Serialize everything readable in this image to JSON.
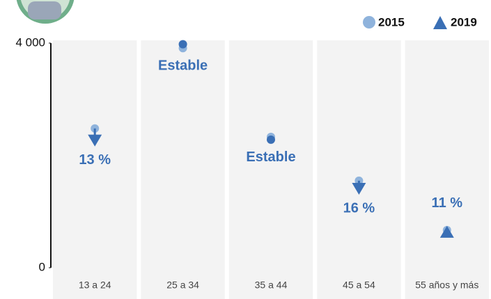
{
  "chart_data": {
    "type": "dot-arrow",
    "categories": [
      "13 a 24",
      "25 a 34",
      "35 a 44",
      "45 a 54",
      "55 años y más"
    ],
    "series": [
      {
        "name": "2015",
        "color": "#8fb3dc",
        "values": [
          2480,
          3910,
          2330,
          1550,
          670
        ]
      },
      {
        "name": "2019",
        "color": "#3a6fb5",
        "values": [
          2160,
          3980,
          2280,
          1300,
          745
        ]
      }
    ],
    "annotations": [
      "13 %",
      "Estable",
      "Estable",
      "16 %",
      "11 %"
    ],
    "ylim": [
      0,
      4000
    ],
    "yticks": [
      {
        "value": 0,
        "label": "0"
      },
      {
        "value": 4000,
        "label": "4 000"
      }
    ],
    "legend": "top-right"
  }
}
